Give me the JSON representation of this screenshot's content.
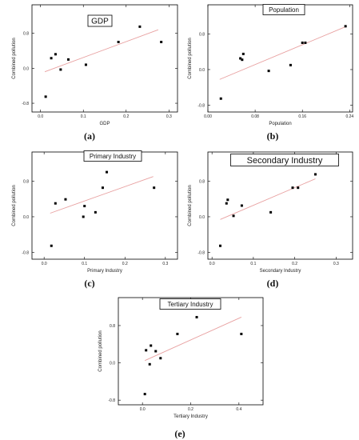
{
  "chart_data": [
    {
      "type": "scatter",
      "title": "GDP",
      "xlabel": "GDP",
      "ylabel": "Combined pollution",
      "sublabel": "(a)",
      "xlim": [
        -0.02,
        0.32
      ],
      "ylim": [
        -1.0,
        1.45
      ],
      "x_ticks": [
        0.0,
        0.1,
        0.2,
        0.3
      ],
      "x_tick_labels": [
        "0.0",
        "0.1",
        "0.2",
        "0.3"
      ],
      "y_ticks": [
        -0.8,
        0.0,
        0.8
      ],
      "y_tick_labels": [
        "-0.8",
        "0.0",
        "0.8"
      ],
      "points": [
        {
          "x": 0.012,
          "y": -0.65
        },
        {
          "x": 0.025,
          "y": 0.23
        },
        {
          "x": 0.035,
          "y": 0.32
        },
        {
          "x": 0.047,
          "y": -0.03
        },
        {
          "x": 0.065,
          "y": 0.2
        },
        {
          "x": 0.106,
          "y": 0.08
        },
        {
          "x": 0.182,
          "y": 0.6
        },
        {
          "x": 0.232,
          "y": 0.95
        },
        {
          "x": 0.282,
          "y": 0.6
        }
      ],
      "fit": {
        "x": [
          0.01,
          0.275
        ],
        "y": [
          -0.08,
          0.88
        ]
      }
    },
    {
      "type": "scatter",
      "title": "Population",
      "xlabel": "Population",
      "ylabel": "Combined pollution",
      "sublabel": "(b)",
      "xlim": [
        0.0,
        0.245
      ],
      "ylim": [
        -0.95,
        1.45
      ],
      "x_ticks": [
        0.0,
        0.08,
        0.16,
        0.24
      ],
      "x_tick_labels": [
        "0.00",
        "0.08",
        "0.16",
        "0.24"
      ],
      "y_ticks": [
        -0.8,
        0.0,
        0.8
      ],
      "y_tick_labels": [
        "-0.8",
        "0.0",
        "0.8"
      ],
      "points": [
        {
          "x": 0.022,
          "y": -0.65
        },
        {
          "x": 0.055,
          "y": 0.25
        },
        {
          "x": 0.058,
          "y": 0.22
        },
        {
          "x": 0.06,
          "y": 0.35
        },
        {
          "x": 0.103,
          "y": -0.03
        },
        {
          "x": 0.14,
          "y": 0.1
        },
        {
          "x": 0.16,
          "y": 0.6
        },
        {
          "x": 0.165,
          "y": 0.6
        },
        {
          "x": 0.233,
          "y": 0.97
        }
      ],
      "fit": {
        "x": [
          0.02,
          0.235
        ],
        "y": [
          -0.22,
          0.97
        ]
      }
    },
    {
      "type": "scatter",
      "title": "Primary Industry",
      "xlabel": "Primary Industry",
      "ylabel": "Combined pollution",
      "sublabel": "(c)",
      "xlim": [
        -0.03,
        0.33
      ],
      "ylim": [
        -0.95,
        1.45
      ],
      "x_ticks": [
        0.0,
        0.1,
        0.2,
        0.3
      ],
      "x_tick_labels": [
        "0.0",
        "0.1",
        "0.2",
        "0.3"
      ],
      "y_ticks": [
        -0.8,
        0.0,
        0.8
      ],
      "y_tick_labels": [
        "-0.8",
        "0.0",
        "0.8"
      ],
      "points": [
        {
          "x": 0.018,
          "y": -0.65
        },
        {
          "x": 0.028,
          "y": 0.3
        },
        {
          "x": 0.053,
          "y": 0.39
        },
        {
          "x": 0.097,
          "y": 0.0
        },
        {
          "x": 0.1,
          "y": 0.24
        },
        {
          "x": 0.127,
          "y": 0.1
        },
        {
          "x": 0.145,
          "y": 0.65
        },
        {
          "x": 0.155,
          "y": 1.0
        },
        {
          "x": 0.272,
          "y": 0.65
        }
      ],
      "fit": {
        "x": [
          0.015,
          0.27
        ],
        "y": [
          0.08,
          0.9
        ]
      }
    },
    {
      "type": "scatter",
      "title": "Secondary Industry",
      "xlabel": "Secondary Industry",
      "ylabel": "Combined pollution",
      "sublabel": "(d)",
      "xlim": [
        -0.01,
        0.34
      ],
      "ylim": [
        -0.95,
        1.45
      ],
      "x_ticks": [
        0.0,
        0.1,
        0.2,
        0.3
      ],
      "x_tick_labels": [
        "0.0",
        "0.1",
        "0.2",
        "0.3"
      ],
      "y_ticks": [
        -0.8,
        0.0,
        0.8
      ],
      "y_tick_labels": [
        "-0.8",
        "0.0",
        "0.8"
      ],
      "points": [
        {
          "x": 0.02,
          "y": -0.65
        },
        {
          "x": 0.035,
          "y": 0.3
        },
        {
          "x": 0.038,
          "y": 0.38
        },
        {
          "x": 0.052,
          "y": 0.02
        },
        {
          "x": 0.072,
          "y": 0.25
        },
        {
          "x": 0.142,
          "y": 0.1
        },
        {
          "x": 0.195,
          "y": 0.65
        },
        {
          "x": 0.208,
          "y": 0.65
        },
        {
          "x": 0.25,
          "y": 0.95
        }
      ],
      "fit": {
        "x": [
          0.02,
          0.25
        ],
        "y": [
          -0.06,
          0.85
        ]
      }
    },
    {
      "type": "scatter",
      "title": "Tertiary Industry",
      "xlabel": "Tertiary Industry",
      "ylabel": "Combined pollution",
      "sublabel": "(e)",
      "xlim": [
        -0.1,
        0.5
      ],
      "ylim": [
        -0.9,
        1.4
      ],
      "x_ticks": [
        0.0,
        0.2,
        0.4
      ],
      "x_tick_labels": [
        "0.0",
        "0.2",
        "0.4"
      ],
      "y_ticks": [
        -0.8,
        0.0,
        0.8
      ],
      "y_tick_labels": [
        "-0.8",
        "0.0",
        "0.8"
      ],
      "points": [
        {
          "x": 0.01,
          "y": -0.67
        },
        {
          "x": 0.015,
          "y": 0.27
        },
        {
          "x": 0.03,
          "y": -0.03
        },
        {
          "x": 0.035,
          "y": 0.37
        },
        {
          "x": 0.055,
          "y": 0.25
        },
        {
          "x": 0.075,
          "y": 0.1
        },
        {
          "x": 0.145,
          "y": 0.62
        },
        {
          "x": 0.225,
          "y": 0.98
        },
        {
          "x": 0.41,
          "y": 0.62
        }
      ],
      "fit": {
        "x": [
          0.01,
          0.41
        ],
        "y": [
          0.05,
          0.98
        ]
      }
    }
  ]
}
